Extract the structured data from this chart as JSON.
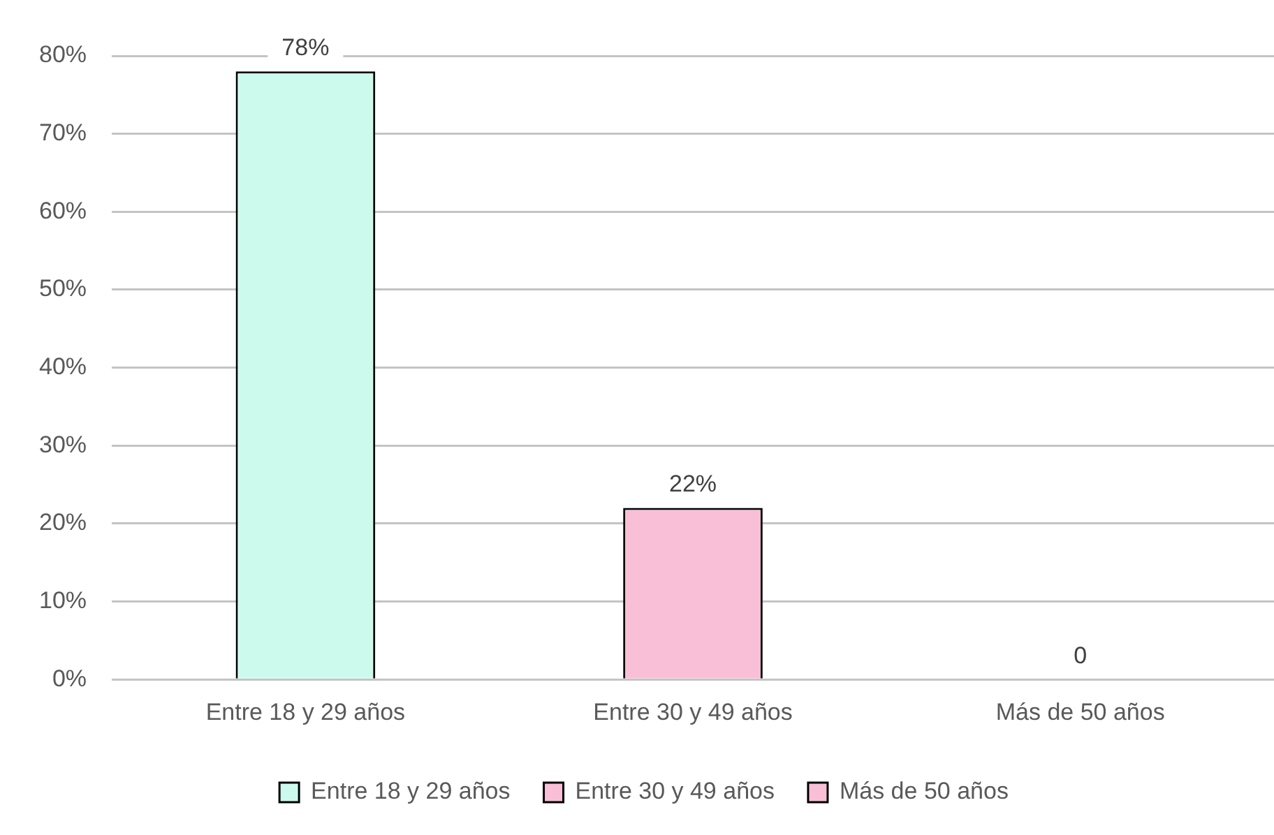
{
  "chart_data": {
    "type": "bar",
    "categories": [
      "Entre 18 y 29 años",
      "Entre 30 y 49 años",
      "Más de 50 años"
    ],
    "series": [
      {
        "name": "Entre 18 y 29 años",
        "color": "#ccfbee",
        "values": [
          78,
          null,
          null
        ],
        "value_labels": [
          "78%",
          null,
          null
        ]
      },
      {
        "name": "Entre 30 y 49 años",
        "color": "#f8bfd6",
        "values": [
          null,
          22,
          null
        ],
        "value_labels": [
          null,
          "22%",
          null
        ]
      },
      {
        "name": "Más de 50 años",
        "color": "#f8bfd6",
        "values": [
          null,
          null,
          0
        ],
        "value_labels": [
          null,
          null,
          "0"
        ]
      }
    ],
    "ylim": [
      0,
      80
    ],
    "yticks": [
      {
        "value": 0,
        "label": "0%"
      },
      {
        "value": 10,
        "label": "10%"
      },
      {
        "value": 20,
        "label": "20%"
      },
      {
        "value": 30,
        "label": "30%"
      },
      {
        "value": 40,
        "label": "40%"
      },
      {
        "value": 50,
        "label": "50%"
      },
      {
        "value": 60,
        "label": "60%"
      },
      {
        "value": 70,
        "label": "70%"
      },
      {
        "value": 80,
        "label": "80%"
      }
    ],
    "grid": "y",
    "legend": "bottom"
  }
}
